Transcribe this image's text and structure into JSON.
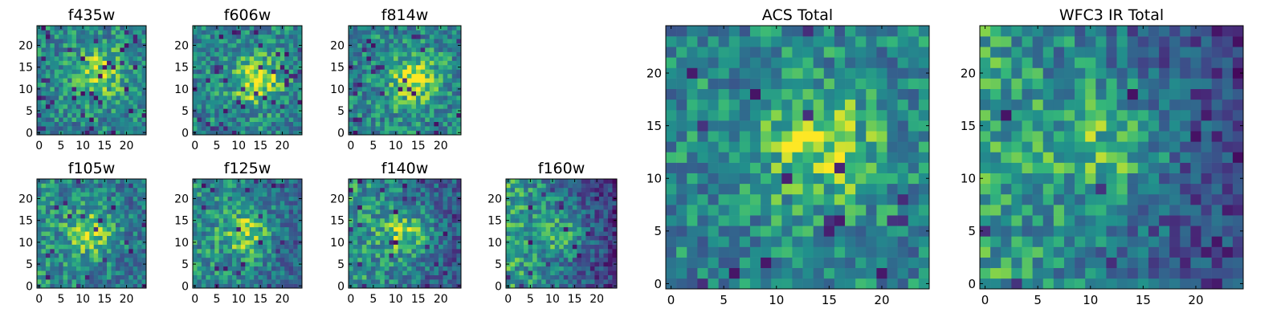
{
  "chart_data": [
    {
      "type": "heatmap",
      "title": "f435w",
      "grid": [
        25,
        25
      ],
      "xlim": [
        -0.5,
        24.5
      ],
      "ylim": [
        -0.5,
        24.5
      ],
      "xticks": [
        0,
        5,
        10,
        15,
        20
      ],
      "yticks": [
        0,
        5,
        10,
        15,
        20
      ],
      "colormap": "viridis",
      "peak": [
        14,
        14
      ],
      "peak_strength": 0.35,
      "dark_fraction": 0.06,
      "seed": 11,
      "gradient": 0.0
    },
    {
      "type": "heatmap",
      "title": "f606w",
      "grid": [
        25,
        25
      ],
      "xlim": [
        -0.5,
        24.5
      ],
      "ylim": [
        -0.5,
        24.5
      ],
      "xticks": [
        0,
        5,
        10,
        15,
        20
      ],
      "yticks": [
        0,
        5,
        10,
        15,
        20
      ],
      "colormap": "viridis",
      "peak": [
        14,
        12
      ],
      "peak_strength": 0.4,
      "dark_fraction": 0.05,
      "seed": 23,
      "gradient": 0.0
    },
    {
      "type": "heatmap",
      "title": "f814w",
      "grid": [
        25,
        25
      ],
      "xlim": [
        -0.5,
        24.5
      ],
      "ylim": [
        -0.5,
        24.5
      ],
      "xticks": [
        0,
        5,
        10,
        15,
        20
      ],
      "yticks": [
        0,
        5,
        10,
        15,
        20
      ],
      "colormap": "viridis",
      "peak": [
        14,
        12
      ],
      "peak_strength": 0.4,
      "dark_fraction": 0.05,
      "seed": 37,
      "gradient": 0.0
    },
    {
      "type": "heatmap",
      "title": "f105w",
      "grid": [
        25,
        25
      ],
      "xlim": [
        -0.5,
        24.5
      ],
      "ylim": [
        -0.5,
        24.5
      ],
      "xticks": [
        0,
        5,
        10,
        15,
        20
      ],
      "yticks": [
        0,
        5,
        10,
        15,
        20
      ],
      "colormap": "viridis",
      "peak": [
        12,
        12
      ],
      "peak_strength": 0.35,
      "dark_fraction": 0.04,
      "seed": 41,
      "gradient": 0.15
    },
    {
      "type": "heatmap",
      "title": "f125w",
      "grid": [
        25,
        25
      ],
      "xlim": [
        -0.5,
        24.5
      ],
      "ylim": [
        -0.5,
        24.5
      ],
      "xticks": [
        0,
        5,
        10,
        15,
        20
      ],
      "yticks": [
        0,
        5,
        10,
        15,
        20
      ],
      "colormap": "viridis",
      "peak": [
        12,
        12
      ],
      "peak_strength": 0.35,
      "dark_fraction": 0.04,
      "seed": 53,
      "gradient": 0.2
    },
    {
      "type": "heatmap",
      "title": "f140w",
      "grid": [
        25,
        25
      ],
      "xlim": [
        -0.5,
        24.5
      ],
      "ylim": [
        -0.5,
        24.5
      ],
      "xticks": [
        0,
        5,
        10,
        15,
        20
      ],
      "yticks": [
        0,
        5,
        10,
        15,
        20
      ],
      "colormap": "viridis",
      "peak": [
        12,
        12
      ],
      "peak_strength": 0.35,
      "dark_fraction": 0.04,
      "seed": 67,
      "gradient": 0.3
    },
    {
      "type": "heatmap",
      "title": "f160w",
      "grid": [
        25,
        25
      ],
      "xlim": [
        -0.5,
        24.5
      ],
      "ylim": [
        -0.5,
        24.5
      ],
      "xticks": [
        0,
        5,
        10,
        15,
        20
      ],
      "yticks": [
        0,
        5,
        10,
        15,
        20
      ],
      "colormap": "viridis",
      "peak": [
        12,
        12
      ],
      "peak_strength": 0.25,
      "dark_fraction": 0.04,
      "seed": 79,
      "gradient": 0.55
    },
    {
      "type": "heatmap",
      "title": "ACS Total",
      "grid": [
        25,
        25
      ],
      "xlim": [
        -0.5,
        24.5
      ],
      "ylim": [
        -0.5,
        24.5
      ],
      "xticks": [
        0,
        5,
        10,
        15,
        20
      ],
      "yticks": [
        0,
        5,
        10,
        15,
        20
      ],
      "colormap": "viridis",
      "peak": [
        14,
        13
      ],
      "peak_strength": 0.35,
      "dark_fraction": 0.03,
      "seed": 91,
      "gradient": 0.0
    },
    {
      "type": "heatmap",
      "title": "WFC3 IR Total",
      "grid": [
        25,
        25
      ],
      "xlim": [
        -0.5,
        24.5
      ],
      "ylim": [
        -0.5,
        24.5
      ],
      "xticks": [
        0,
        5,
        10,
        15,
        20
      ],
      "yticks": [
        0,
        5,
        10,
        15,
        20
      ],
      "colormap": "viridis",
      "peak": [
        12,
        13
      ],
      "peak_strength": 0.3,
      "dark_fraction": 0.03,
      "seed": 103,
      "gradient": 0.5
    }
  ]
}
